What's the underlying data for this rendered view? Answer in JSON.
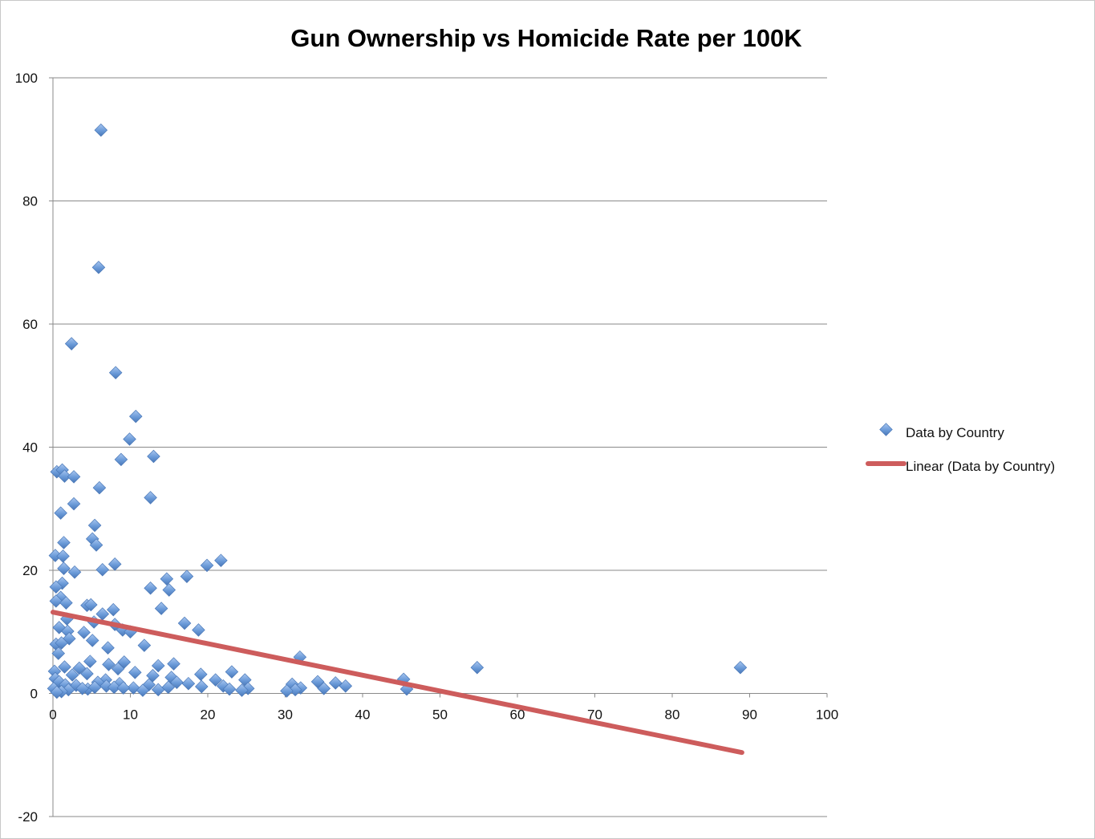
{
  "chart_data": {
    "type": "scatter",
    "title": "Gun Ownership vs Homicide Rate per 100K",
    "xlabel": "",
    "ylabel": "",
    "xlim": [
      0,
      100
    ],
    "ylim": [
      -20,
      100
    ],
    "x_ticks": [
      "0",
      "10",
      "20",
      "30",
      "40",
      "50",
      "60",
      "70",
      "80",
      "90",
      "100"
    ],
    "y_ticks": [
      "100",
      "80",
      "60",
      "40",
      "20",
      "0",
      "-20"
    ],
    "x_tick_values": [
      0,
      10,
      20,
      30,
      40,
      50,
      60,
      70,
      80,
      90,
      100
    ],
    "y_tick_values": [
      100,
      80,
      60,
      40,
      20,
      0,
      -20
    ],
    "grid": "horizontal",
    "legend_position": "right",
    "series": [
      {
        "name": "Data by Country",
        "marker": "diamond",
        "color": "#6a9ad8",
        "points": [
          [
            6.2,
            91.5
          ],
          [
            5.9,
            69.2
          ],
          [
            2.4,
            56.8
          ],
          [
            8.1,
            52.1
          ],
          [
            10.7,
            45.0
          ],
          [
            9.9,
            41.3
          ],
          [
            13.0,
            38.5
          ],
          [
            8.8,
            38.0
          ],
          [
            0.5,
            36.0
          ],
          [
            1.2,
            36.3
          ],
          [
            1.5,
            35.3
          ],
          [
            2.7,
            35.2
          ],
          [
            6.0,
            33.4
          ],
          [
            12.6,
            31.8
          ],
          [
            2.7,
            30.8
          ],
          [
            1.0,
            29.3
          ],
          [
            5.4,
            27.3
          ],
          [
            5.1,
            25.1
          ],
          [
            1.4,
            24.5
          ],
          [
            5.6,
            24.1
          ],
          [
            0.3,
            22.4
          ],
          [
            1.3,
            22.3
          ],
          [
            21.7,
            21.6
          ],
          [
            8.0,
            21.0
          ],
          [
            19.9,
            20.8
          ],
          [
            1.4,
            20.3
          ],
          [
            6.4,
            20.1
          ],
          [
            2.8,
            19.7
          ],
          [
            17.3,
            19.0
          ],
          [
            14.7,
            18.6
          ],
          [
            1.2,
            17.9
          ],
          [
            0.4,
            17.3
          ],
          [
            12.6,
            17.1
          ],
          [
            15.0,
            16.8
          ],
          [
            1.0,
            15.6
          ],
          [
            0.4,
            15.0
          ],
          [
            1.7,
            14.7
          ],
          [
            4.4,
            14.3
          ],
          [
            4.9,
            14.4
          ],
          [
            14.0,
            13.8
          ],
          [
            7.8,
            13.6
          ],
          [
            6.4,
            12.9
          ],
          [
            1.8,
            12.1
          ],
          [
            5.3,
            11.6
          ],
          [
            17.0,
            11.4
          ],
          [
            8.0,
            11.2
          ],
          [
            0.8,
            10.7
          ],
          [
            9.0,
            10.3
          ],
          [
            10.0,
            10.0
          ],
          [
            18.8,
            10.3
          ],
          [
            1.9,
            10.1
          ],
          [
            4.0,
            9.9
          ],
          [
            2.1,
            8.9
          ],
          [
            5.1,
            8.6
          ],
          [
            0.4,
            8.0
          ],
          [
            1.1,
            8.2
          ],
          [
            11.8,
            7.8
          ],
          [
            7.1,
            7.4
          ],
          [
            0.7,
            6.5
          ],
          [
            31.9,
            5.9
          ],
          [
            4.8,
            5.2
          ],
          [
            9.2,
            5.1
          ],
          [
            15.6,
            4.8
          ],
          [
            7.2,
            4.7
          ],
          [
            13.6,
            4.5
          ],
          [
            1.5,
            4.3
          ],
          [
            3.4,
            4.1
          ],
          [
            0.2,
            3.6
          ],
          [
            8.4,
            4.0
          ],
          [
            10.6,
            3.4
          ],
          [
            54.8,
            4.2
          ],
          [
            88.8,
            4.2
          ],
          [
            23.1,
            3.5
          ],
          [
            19.1,
            3.1
          ],
          [
            4.4,
            3.2
          ],
          [
            2.5,
            3.0
          ],
          [
            12.9,
            2.9
          ],
          [
            15.3,
            2.6
          ],
          [
            0.3,
            2.4
          ],
          [
            6.8,
            2.2
          ],
          [
            24.8,
            2.2
          ],
          [
            45.3,
            2.3
          ],
          [
            21.0,
            2.2
          ],
          [
            34.2,
            1.9
          ],
          [
            16.0,
            1.8
          ],
          [
            17.5,
            1.6
          ],
          [
            36.5,
            1.7
          ],
          [
            0.8,
            1.9
          ],
          [
            5.8,
            1.8
          ],
          [
            8.6,
            1.6
          ],
          [
            12.4,
            1.4
          ],
          [
            30.9,
            1.5
          ],
          [
            3.0,
            1.3
          ],
          [
            1.6,
            1.4
          ],
          [
            22.0,
            1.2
          ],
          [
            37.8,
            1.2
          ],
          [
            32.0,
            0.9
          ],
          [
            14.9,
            1.0
          ],
          [
            19.2,
            1.1
          ],
          [
            6.9,
            1.2
          ],
          [
            10.4,
            0.9
          ],
          [
            0.1,
            0.8
          ],
          [
            25.2,
            0.8
          ],
          [
            45.7,
            0.7
          ],
          [
            31.3,
            0.6
          ],
          [
            30.2,
            0.4
          ],
          [
            2.0,
            0.6
          ],
          [
            4.5,
            0.7
          ],
          [
            13.6,
            0.6
          ],
          [
            22.8,
            0.7
          ],
          [
            35.0,
            0.8
          ],
          [
            1.1,
            0.3
          ],
          [
            0.5,
            0.2
          ],
          [
            11.6,
            0.5
          ],
          [
            7.9,
            1.0
          ],
          [
            9.1,
            0.9
          ],
          [
            3.8,
            0.8
          ],
          [
            5.4,
            1.0
          ],
          [
            24.4,
            0.5
          ]
        ]
      },
      {
        "name": "Linear (Data by Country)",
        "type": "trendline",
        "color": "#cd5c5c",
        "x": [
          0,
          89
        ],
        "y": [
          13.2,
          -9.6
        ]
      }
    ]
  },
  "legend": {
    "scatter_label": "Data by Country",
    "trend_label": "Linear (Data by Country)"
  }
}
